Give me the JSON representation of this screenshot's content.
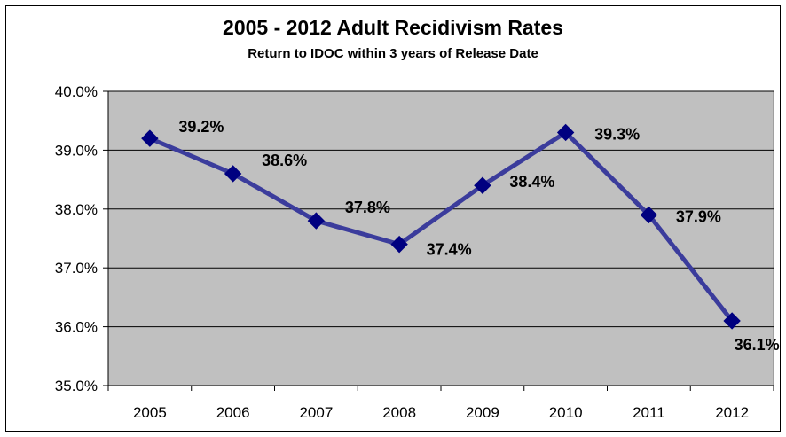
{
  "chart_data": {
    "type": "line",
    "title": "2005 - 2012 Adult Recidivism Rates",
    "subtitle": "Return to IDOC within 3 years of Release Date",
    "xlabel": "",
    "ylabel": "",
    "categories": [
      "2005",
      "2006",
      "2007",
      "2008",
      "2009",
      "2010",
      "2011",
      "2012"
    ],
    "series": [
      {
        "values": [
          39.2,
          38.6,
          37.8,
          37.4,
          38.4,
          39.3,
          37.9,
          36.1
        ],
        "data_labels": [
          "39.2%",
          "38.6%",
          "37.8%",
          "37.4%",
          "38.4%",
          "39.3%",
          "37.9%",
          "36.1%"
        ],
        "color": "#3b3c9c",
        "marker_color": "#000080"
      }
    ],
    "ylim": [
      35.0,
      40.0
    ],
    "yticks": [
      35.0,
      36.0,
      37.0,
      38.0,
      39.0,
      40.0
    ],
    "ytick_labels": [
      "35.0%",
      "36.0%",
      "37.0%",
      "38.0%",
      "39.0%",
      "40.0%"
    ],
    "grid": true,
    "legend": "none",
    "plot_background": "#c0c0c0"
  }
}
